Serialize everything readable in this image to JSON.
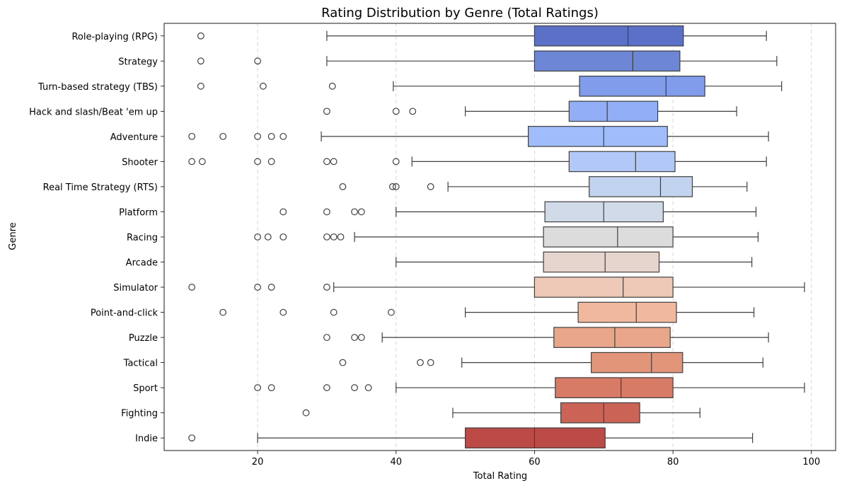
{
  "chart_data": {
    "type": "boxplot",
    "orientation": "horizontal",
    "title": "Rating Distribution by Genre (Total Ratings)",
    "xlabel": "Total Rating",
    "ylabel": "Genre",
    "xlim": [
      6.5,
      103.5
    ],
    "xticks": [
      20,
      40,
      60,
      80,
      100
    ],
    "grid": "x-dashed",
    "series": [
      {
        "name": "Role-playing (RPG)",
        "whisker_low": 30,
        "q1": 60,
        "median": 73.5,
        "q3": 81.5,
        "whisker_high": 93.5,
        "outliers": [
          11.8
        ],
        "color": "#5b71c8"
      },
      {
        "name": "Strategy",
        "whisker_low": 30,
        "q1": 60,
        "median": 74.2,
        "q3": 81,
        "whisker_high": 95,
        "outliers": [
          11.8,
          20
        ],
        "color": "#6d86d6"
      },
      {
        "name": "Turn-based strategy (TBS)",
        "whisker_low": 39.6,
        "q1": 66.5,
        "median": 79,
        "q3": 84.6,
        "whisker_high": 95.7,
        "outliers": [
          11.8,
          20.8,
          30.8
        ],
        "color": "#819cea"
      },
      {
        "name": "Hack and slash/Beat 'em up",
        "whisker_low": 50,
        "q1": 65,
        "median": 70.5,
        "q3": 77.8,
        "whisker_high": 89.2,
        "outliers": [
          30,
          40,
          42.4
        ],
        "color": "#92aef6"
      },
      {
        "name": "Adventure",
        "whisker_low": 29.2,
        "q1": 59.1,
        "median": 70,
        "q3": 79.2,
        "whisker_high": 93.8,
        "outliers": [
          10.5,
          15,
          20,
          22,
          23.7
        ],
        "color": "#a1bcfa"
      },
      {
        "name": "Shooter",
        "whisker_low": 42.3,
        "q1": 65,
        "median": 74.6,
        "q3": 80.3,
        "whisker_high": 93.5,
        "outliers": [
          10.5,
          12,
          20,
          22,
          30,
          31,
          40
        ],
        "color": "#b2c8f6"
      },
      {
        "name": "Real Time Strategy (RTS)",
        "whisker_low": 47.5,
        "q1": 67.9,
        "median": 78.2,
        "q3": 82.8,
        "whisker_high": 90.7,
        "outliers": [
          32.3,
          39.5,
          40,
          45
        ],
        "color": "#c2d3ef"
      },
      {
        "name": "Platform",
        "whisker_low": 40,
        "q1": 61.5,
        "median": 70,
        "q3": 78.6,
        "whisker_high": 92,
        "outliers": [
          23.7,
          30,
          34,
          35
        ],
        "color": "#d0dae9"
      },
      {
        "name": "Racing",
        "whisker_low": 34,
        "q1": 61.3,
        "median": 72,
        "q3": 80,
        "whisker_high": 92.3,
        "outliers": [
          20,
          21.5,
          23.7,
          30,
          31,
          32
        ],
        "color": "#dcdcdc"
      },
      {
        "name": "Arcade",
        "whisker_low": 40,
        "q1": 61.3,
        "median": 70.2,
        "q3": 78,
        "whisker_high": 91.4,
        "outliers": [],
        "color": "#e6d5cd"
      },
      {
        "name": "Simulator",
        "whisker_low": 31,
        "q1": 60,
        "median": 72.8,
        "q3": 80,
        "whisker_high": 99,
        "outliers": [
          10.5,
          20,
          22,
          30
        ],
        "color": "#eec9b7"
      },
      {
        "name": "Point-and-click",
        "whisker_low": 50,
        "q1": 66.3,
        "median": 74.7,
        "q3": 80.5,
        "whisker_high": 91.7,
        "outliers": [
          15,
          23.7,
          31,
          39.3
        ],
        "color": "#efb89f"
      },
      {
        "name": "Puzzle",
        "whisker_low": 38,
        "q1": 62.8,
        "median": 71.6,
        "q3": 79.6,
        "whisker_high": 93.8,
        "outliers": [
          30,
          34,
          35
        ],
        "color": "#eaa68a"
      },
      {
        "name": "Tactical",
        "whisker_low": 49.5,
        "q1": 68.2,
        "median": 76.9,
        "q3": 81.4,
        "whisker_high": 93,
        "outliers": [
          32.3,
          43.5,
          45
        ],
        "color": "#e39579"
      },
      {
        "name": "Sport",
        "whisker_low": 40,
        "q1": 63,
        "median": 72.5,
        "q3": 80,
        "whisker_high": 99,
        "outliers": [
          20,
          22,
          30,
          34,
          36
        ],
        "color": "#d77a66"
      },
      {
        "name": "Fighting",
        "whisker_low": 48.2,
        "q1": 63.8,
        "median": 70,
        "q3": 75.2,
        "whisker_high": 83.9,
        "outliers": [
          27
        ],
        "color": "#cb6356"
      },
      {
        "name": "Indie",
        "whisker_low": 20,
        "q1": 50,
        "median": 60,
        "q3": 70.2,
        "whisker_high": 91.5,
        "outliers": [
          10.5
        ],
        "color": "#bc4a47"
      }
    ]
  }
}
